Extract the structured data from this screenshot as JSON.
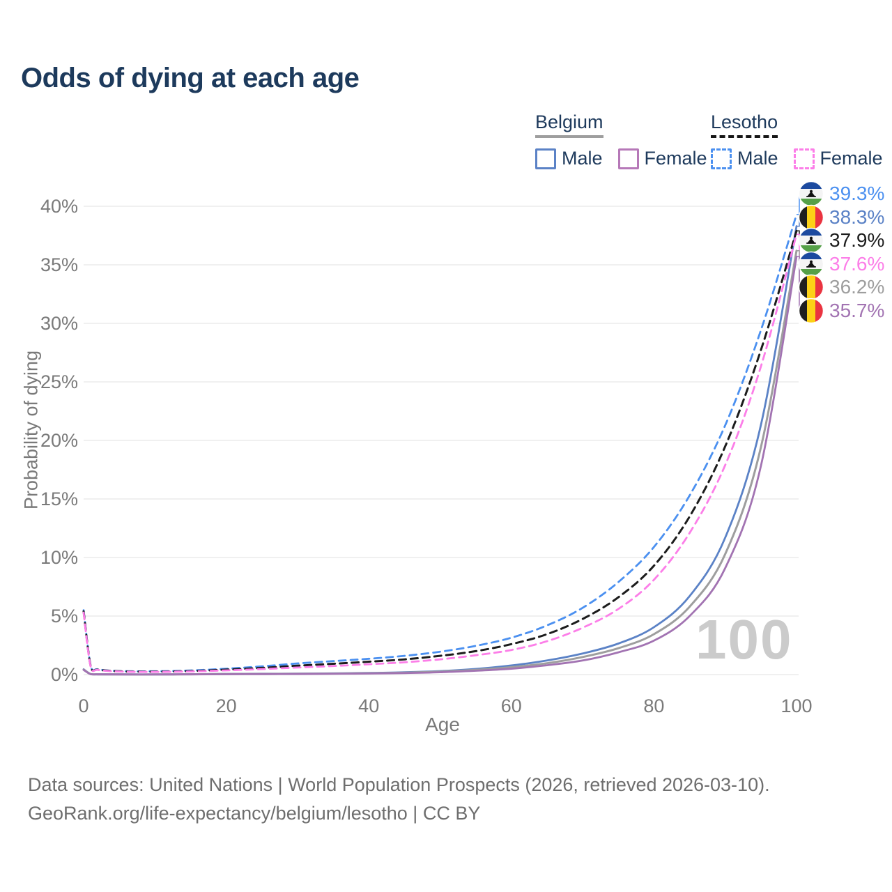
{
  "title": "Odds of dying at each age",
  "legend": {
    "groups": [
      {
        "label": "Belgium",
        "underline_style": "solid",
        "underline_color": "#9e9e9e",
        "items": [
          {
            "label": "Male",
            "color": "#5b82c6",
            "dash": false
          },
          {
            "label": "Female",
            "color": "#b678b8",
            "dash": false
          }
        ]
      },
      {
        "label": "Lesotho",
        "underline_style": "dashed",
        "underline_color": "#161616",
        "items": [
          {
            "label": "Male",
            "color": "#4b90f0",
            "dash": true
          },
          {
            "label": "Female",
            "color": "#fc7ee8",
            "dash": true
          }
        ]
      }
    ]
  },
  "chart_data": {
    "type": "line",
    "title": "Odds of dying at each age",
    "xlabel": "Age",
    "ylabel": "Probability of dying",
    "xlim": [
      0,
      100
    ],
    "ylim": [
      0,
      40
    ],
    "x_ticks": [
      0,
      20,
      40,
      60,
      80,
      100
    ],
    "y_ticks": [
      "0%",
      "5%",
      "10%",
      "15%",
      "20%",
      "25%",
      "30%",
      "35%",
      "40%"
    ],
    "grid": "horizontal",
    "legend_position": "top-right",
    "age_watermark": "100",
    "x": [
      0,
      1,
      2,
      5,
      10,
      15,
      20,
      25,
      30,
      35,
      40,
      45,
      50,
      55,
      60,
      65,
      70,
      75,
      80,
      85,
      90,
      95,
      100
    ],
    "series": [
      {
        "name": "Belgium Male",
        "country": "belgium",
        "sex": "male",
        "style": "solid",
        "color": "#5b82c6",
        "width": 2.8,
        "end_label": "38.3%",
        "values": [
          0.45,
          0.04,
          0.02,
          0.015,
          0.012,
          0.03,
          0.06,
          0.07,
          0.08,
          0.1,
          0.14,
          0.2,
          0.3,
          0.48,
          0.78,
          1.2,
          1.8,
          2.65,
          4.05,
          6.7,
          11.7,
          21.3,
          38.3
        ]
      },
      {
        "name": "Belgium Both sexes",
        "country": "belgium",
        "sex": "both",
        "style": "solid",
        "color": "#9e9e9e",
        "width": 3,
        "end_label": "36.2%",
        "values": [
          0.42,
          0.035,
          0.018,
          0.013,
          0.01,
          0.022,
          0.045,
          0.055,
          0.065,
          0.085,
          0.115,
          0.165,
          0.25,
          0.4,
          0.63,
          0.97,
          1.5,
          2.25,
          3.45,
          5.8,
          10.3,
          19.4,
          36.2
        ]
      },
      {
        "name": "Belgium Female",
        "country": "belgium",
        "sex": "female",
        "style": "solid",
        "color": "#a273b2",
        "width": 2.8,
        "end_label": "35.7%",
        "values": [
          0.4,
          0.03,
          0.015,
          0.01,
          0.009,
          0.016,
          0.03,
          0.04,
          0.05,
          0.065,
          0.09,
          0.13,
          0.2,
          0.33,
          0.5,
          0.8,
          1.2,
          1.9,
          2.9,
          5.0,
          9.1,
          17.8,
          35.7
        ]
      },
      {
        "name": "Lesotho Male",
        "country": "lesotho",
        "sex": "male",
        "style": "dashed",
        "color": "#4b90f0",
        "width": 2.8,
        "end_label": "39.3%",
        "values": [
          5.5,
          0.75,
          0.45,
          0.3,
          0.28,
          0.35,
          0.5,
          0.7,
          0.95,
          1.15,
          1.35,
          1.6,
          1.95,
          2.45,
          3.15,
          4.2,
          5.7,
          7.9,
          10.9,
          15.3,
          21.3,
          29.4,
          39.3
        ]
      },
      {
        "name": "Lesotho Both sexes",
        "country": "lesotho",
        "sex": "both",
        "style": "dashed",
        "color": "#1c1c1c",
        "width": 3,
        "end_label": "37.9%",
        "values": [
          5.4,
          0.7,
          0.42,
          0.28,
          0.25,
          0.3,
          0.42,
          0.57,
          0.76,
          0.92,
          1.1,
          1.3,
          1.6,
          2.0,
          2.6,
          3.45,
          4.75,
          6.6,
          9.3,
          13.5,
          19.5,
          27.7,
          37.9
        ]
      },
      {
        "name": "Lesotho Female",
        "country": "lesotho",
        "sex": "female",
        "style": "dashed",
        "color": "#fc7ee8",
        "width": 2.8,
        "end_label": "37.6%",
        "values": [
          5.3,
          0.65,
          0.4,
          0.26,
          0.23,
          0.27,
          0.36,
          0.47,
          0.6,
          0.73,
          0.88,
          1.05,
          1.3,
          1.65,
          2.1,
          2.85,
          4.0,
          5.6,
          8.1,
          12.1,
          17.9,
          26.3,
          37.6
        ]
      }
    ]
  },
  "flags": {
    "belgium": {
      "black": "#1f1f1f",
      "yellow": "#fcd116",
      "red": "#ea3340"
    },
    "lesotho": {
      "blue": "#1c4a9f",
      "white": "#f4f4f4",
      "green": "#55a048",
      "hat": "#111111"
    }
  },
  "colors": {
    "grid": "#ebebeb",
    "tick_text": "#7a7a7a",
    "title_text": "#1d3a5c",
    "watermark": "#cbcbcb",
    "footer_text": "#6e6e6e"
  },
  "footer": {
    "line1": "Data sources: United Nations | World Population Prospects (2026, retrieved 2026-03-10).",
    "line2": "GeoRank.org/life-expectancy/belgium/lesotho | CC BY"
  }
}
